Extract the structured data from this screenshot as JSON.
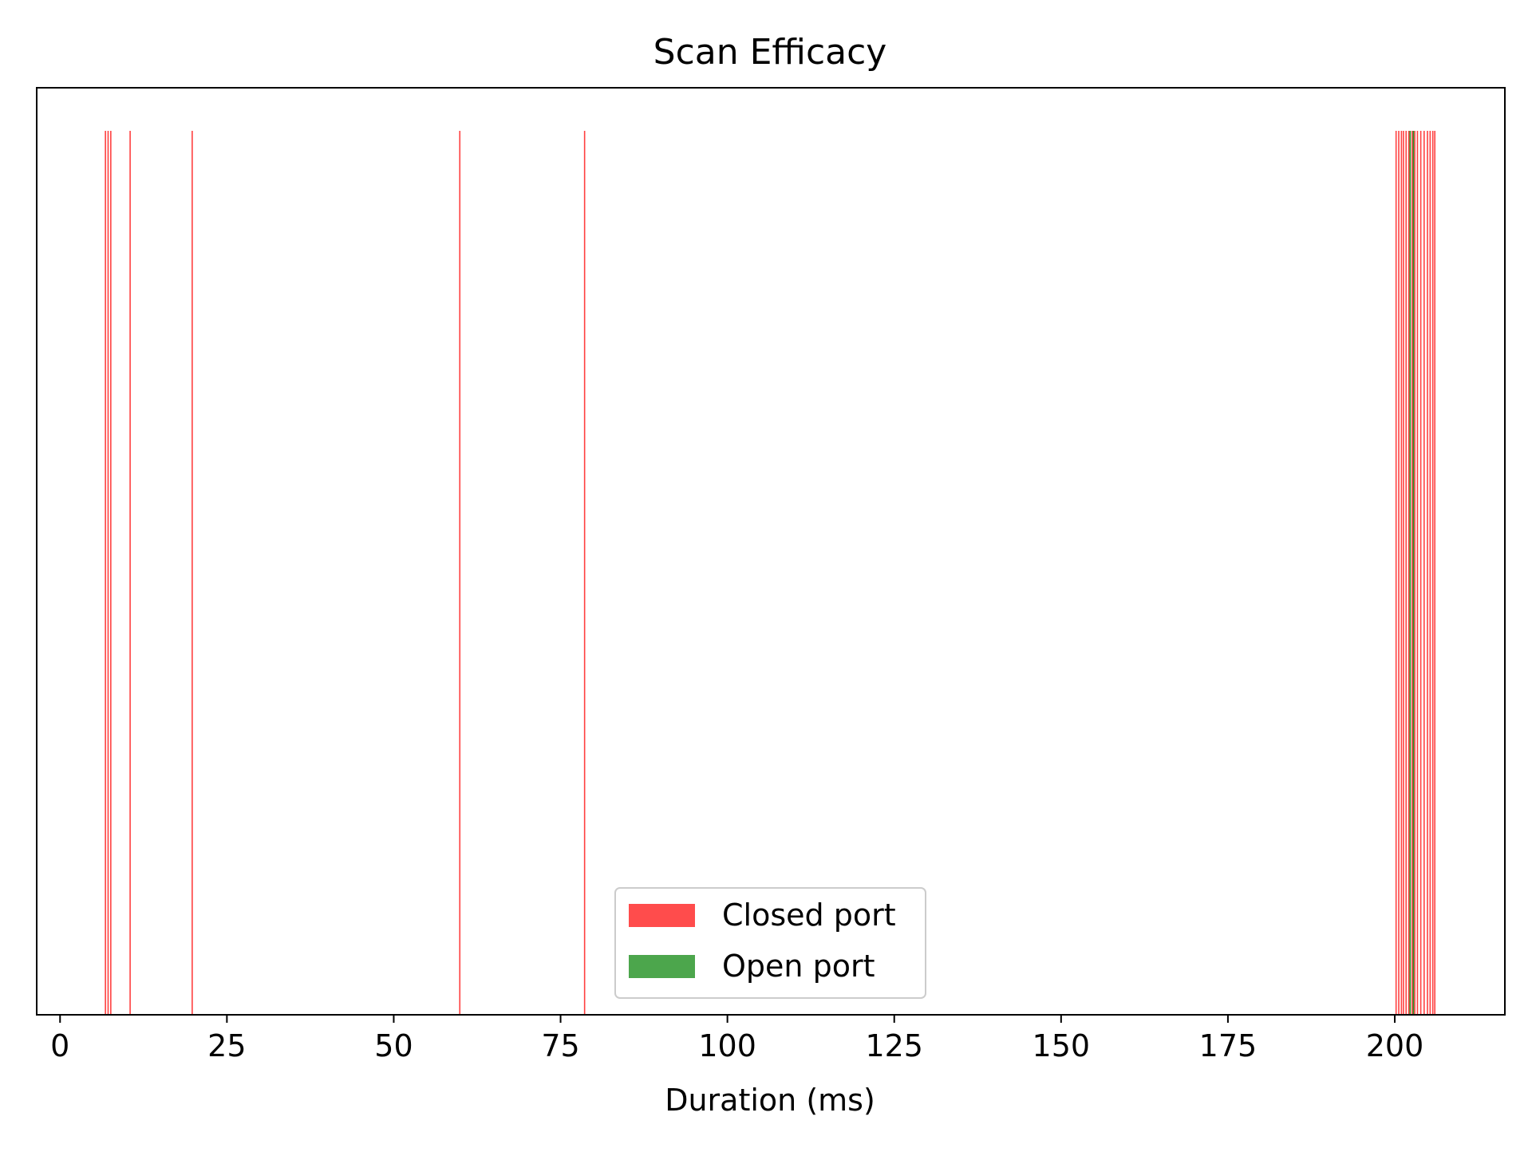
{
  "chart_data": {
    "type": "bar",
    "orientation": "vertical-span",
    "title": "Scan Efficacy",
    "xlabel": "Duration (ms)",
    "ylabel": "",
    "xlim": [
      -3.5,
      216.5
    ],
    "xticks": [
      0,
      25,
      50,
      75,
      100,
      125,
      150,
      175,
      200
    ],
    "xtick_labels": [
      "0",
      "25",
      "50",
      "75",
      "100",
      "125",
      "150",
      "175",
      "200"
    ],
    "y_axis_visible": false,
    "grid": false,
    "legend": {
      "position": "bottom-center",
      "entries": [
        "Closed port",
        "Open port"
      ]
    },
    "series": [
      {
        "name": "Closed port",
        "color": "#ff0000",
        "x": [
          6.8,
          7.2,
          7.6,
          10.5,
          19.8,
          59.9,
          78.6,
          200.2,
          200.6,
          201.0,
          201.3,
          201.7,
          202.1,
          202.6,
          203.0,
          203.4,
          203.9,
          204.4,
          204.9,
          205.3,
          205.7,
          206.0
        ]
      },
      {
        "name": "Open port",
        "color": "#008000",
        "x": [
          202.3,
          202.8
        ]
      }
    ]
  }
}
